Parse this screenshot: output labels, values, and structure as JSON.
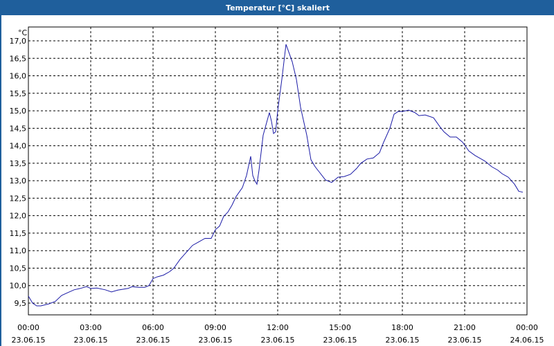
{
  "window": {
    "title": "Temperatur [°C] skaliert"
  },
  "chart_data": {
    "type": "line",
    "title": "Temperatur [°C] skaliert",
    "ylabel": "°C",
    "xlabel": "",
    "ylim": [
      9.0,
      17.2
    ],
    "xlim_hours": [
      0,
      24
    ],
    "grid": true,
    "line_color": "#1a1aa6",
    "yticks": [
      "17,0",
      "16,5",
      "16,0",
      "15,5",
      "15,0",
      "14,5",
      "14,0",
      "13,5",
      "13,0",
      "12,5",
      "12,0",
      "11,5",
      "11,0",
      "10,5",
      "10,0",
      "9,5"
    ],
    "ytick_values": [
      17.0,
      16.5,
      16.0,
      15.5,
      15.0,
      14.5,
      14.0,
      13.5,
      13.0,
      12.5,
      12.0,
      11.5,
      11.0,
      10.5,
      10.0,
      9.5
    ],
    "xticks": [
      {
        "time": "00:00",
        "date": "23.06.15"
      },
      {
        "time": "03:00",
        "date": "23.06.15"
      },
      {
        "time": "06:00",
        "date": "23.06.15"
      },
      {
        "time": "09:00",
        "date": "23.06.15"
      },
      {
        "time": "12:00",
        "date": "23.06.15"
      },
      {
        "time": "15:00",
        "date": "23.06.15"
      },
      {
        "time": "18:00",
        "date": "23.06.15"
      },
      {
        "time": "21:00",
        "date": "23.06.15"
      },
      {
        "time": "00:00",
        "date": "24.06.15"
      }
    ],
    "series": [
      {
        "x_hours": [
          0,
          0.2,
          0.4,
          0.6,
          0.8,
          1.0,
          1.3,
          1.6,
          1.9,
          2.2,
          2.5,
          2.8,
          3.0,
          3.3,
          3.7,
          4.0,
          4.3,
          4.6,
          4.8,
          5.0,
          5.3,
          5.6,
          5.8,
          6.0,
          6.2,
          6.5,
          6.8,
          7.0,
          7.3,
          7.6,
          7.9,
          8.2,
          8.5,
          8.8,
          9.0,
          9.2,
          9.4,
          9.6,
          9.8,
          10.0,
          10.3,
          10.5,
          10.7,
          10.8,
          10.9,
          11.0,
          11.1,
          11.3,
          11.6,
          11.7,
          11.8,
          11.9,
          12.0,
          12.2,
          12.4,
          12.7,
          12.9,
          13.1,
          13.4,
          13.6,
          13.8,
          14.0,
          14.3,
          14.6,
          14.9,
          15.2,
          15.5,
          15.8,
          16.0,
          16.3,
          16.6,
          16.9,
          17.1,
          17.4,
          17.6,
          17.8,
          18.0,
          18.3,
          18.6,
          18.8,
          19.1,
          19.5,
          19.8,
          20.0,
          20.3,
          20.6,
          20.9,
          21.2,
          21.5,
          21.8,
          22.0,
          22.3,
          22.6,
          22.8,
          23.1,
          23.4,
          23.6,
          23.8
        ],
        "y": [
          9.7,
          9.5,
          9.42,
          9.42,
          9.45,
          9.48,
          9.55,
          9.72,
          9.8,
          9.88,
          9.92,
          9.97,
          9.92,
          9.93,
          9.88,
          9.82,
          9.87,
          9.9,
          9.92,
          9.97,
          9.95,
          9.95,
          10.0,
          10.2,
          10.25,
          10.3,
          10.4,
          10.5,
          10.75,
          10.95,
          11.15,
          11.25,
          11.35,
          11.35,
          11.6,
          11.7,
          11.98,
          12.1,
          12.3,
          12.55,
          12.8,
          13.15,
          13.7,
          13.15,
          13.0,
          12.9,
          13.3,
          14.3,
          14.95,
          14.7,
          14.35,
          14.4,
          15.0,
          15.9,
          16.9,
          16.4,
          15.9,
          15.1,
          14.3,
          13.6,
          13.4,
          13.25,
          13.02,
          12.95,
          13.1,
          13.12,
          13.18,
          13.35,
          13.5,
          13.62,
          13.65,
          13.8,
          14.1,
          14.5,
          14.9,
          14.98,
          14.98,
          15.02,
          14.95,
          14.86,
          14.88,
          14.8,
          14.55,
          14.4,
          14.25,
          14.25,
          14.1,
          13.85,
          13.72,
          13.62,
          13.55,
          13.4,
          13.3,
          13.2,
          13.1,
          12.9,
          12.7,
          12.67
        ]
      }
    ]
  }
}
